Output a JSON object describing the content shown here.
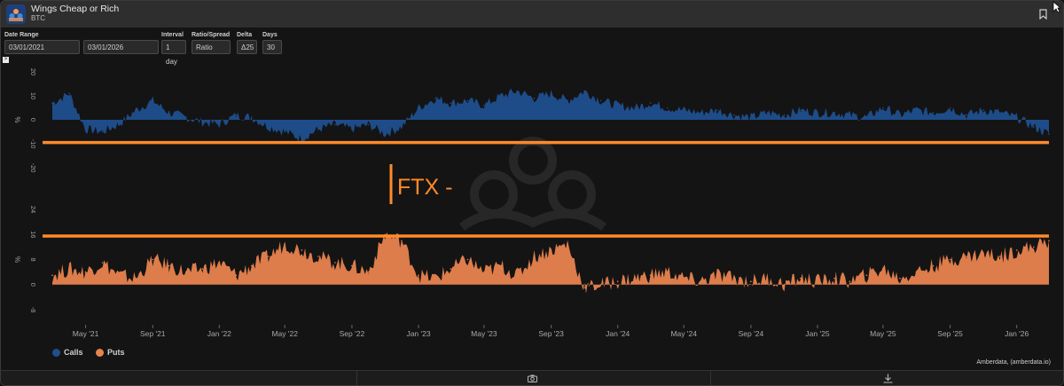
{
  "window": {
    "title": "Wings Cheap or Rich",
    "subtitle": "BTC",
    "logo_icon": "amberdata-logo-icon",
    "bookmark_icon": "bookmark-icon"
  },
  "controls": {
    "date_range_label": "Date Range",
    "start_date": "03/01/2021",
    "end_date": "03/01/2026",
    "interval_label": "Interval",
    "interval_value": "1 day",
    "ratio_label": "Ratio/Spread",
    "ratio_value": "Ratio",
    "delta_label": "Delta",
    "delta_value": "Δ25",
    "days_label": "Days",
    "days_value": "30",
    "toggle_symbol": ">"
  },
  "colors": {
    "calls": "#1f4f8f",
    "puts": "#e8834e",
    "annotation": "#ff8a2a",
    "background": "#141414"
  },
  "annotation_text": "FTX -",
  "chart_data": [
    {
      "type": "area",
      "ylabel": "%",
      "ylim": [
        -20,
        20
      ],
      "yticks": [
        "20",
        "10",
        "0",
        "-10",
        "-20"
      ],
      "series": [
        {
          "name": "Calls",
          "x": [
            "2021-03",
            "2021-04",
            "2021-05",
            "2021-06",
            "2021-07",
            "2021-08",
            "2021-09",
            "2021-10",
            "2021-11",
            "2021-12",
            "2022-01",
            "2022-02",
            "2022-03",
            "2022-04",
            "2022-05",
            "2022-06",
            "2022-07",
            "2022-08",
            "2022-09",
            "2022-10",
            "2022-11",
            "2022-12",
            "2023-01",
            "2023-02",
            "2023-03",
            "2023-04",
            "2023-05",
            "2023-06",
            "2023-07",
            "2023-08",
            "2023-09",
            "2023-10",
            "2023-11",
            "2023-12",
            "2024-01",
            "2024-02",
            "2024-03",
            "2024-04",
            "2024-05",
            "2024-06",
            "2024-07",
            "2024-08",
            "2024-09",
            "2024-10",
            "2024-11",
            "2024-12",
            "2025-01",
            "2025-02",
            "2025-03",
            "2025-04",
            "2025-05",
            "2025-06",
            "2025-07",
            "2025-08",
            "2025-09",
            "2025-10",
            "2025-11",
            "2025-12",
            "2026-01",
            "2026-02",
            "2026-03"
          ],
          "values": [
            7,
            11,
            -4,
            -5,
            -2,
            4,
            8,
            3,
            1,
            -1,
            -2,
            2,
            1,
            -3,
            -5,
            -8,
            -4,
            -2,
            -4,
            -2,
            -6,
            -3,
            5,
            9,
            7,
            8,
            6,
            10,
            12,
            9,
            11,
            8,
            12,
            8,
            6,
            5,
            7,
            5,
            4,
            3,
            4,
            2,
            1,
            3,
            2,
            4,
            3,
            3,
            2,
            1,
            5,
            2,
            4,
            3,
            5,
            2,
            4,
            3,
            1,
            -3,
            -6
          ]
        }
      ],
      "reference_line": -9.5
    },
    {
      "type": "area",
      "ylabel": "%",
      "ylim": [
        -8,
        24
      ],
      "yticks": [
        "24",
        "16",
        "8",
        "0",
        "-8"
      ],
      "series": [
        {
          "name": "Puts",
          "x": [
            "2021-03",
            "2021-04",
            "2021-05",
            "2021-06",
            "2021-07",
            "2021-08",
            "2021-09",
            "2021-10",
            "2021-11",
            "2021-12",
            "2022-01",
            "2022-02",
            "2022-03",
            "2022-04",
            "2022-05",
            "2022-06",
            "2022-07",
            "2022-08",
            "2022-09",
            "2022-10",
            "2022-11",
            "2022-12",
            "2023-01",
            "2023-02",
            "2023-03",
            "2023-04",
            "2023-05",
            "2023-06",
            "2023-07",
            "2023-08",
            "2023-09",
            "2023-10",
            "2023-11",
            "2023-12",
            "2024-01",
            "2024-02",
            "2024-03",
            "2024-04",
            "2024-05",
            "2024-06",
            "2024-07",
            "2024-08",
            "2024-09",
            "2024-10",
            "2024-11",
            "2024-12",
            "2025-01",
            "2025-02",
            "2025-03",
            "2025-04",
            "2025-05",
            "2025-06",
            "2025-07",
            "2025-08",
            "2025-09",
            "2025-10",
            "2025-11",
            "2025-12",
            "2026-01",
            "2026-02",
            "2026-03"
          ],
          "values": [
            3,
            5,
            4,
            7,
            3,
            2,
            8,
            6,
            4,
            5,
            7,
            3,
            6,
            9,
            13,
            11,
            9,
            7,
            6,
            4,
            16,
            14,
            3,
            2,
            5,
            8,
            4,
            6,
            3,
            9,
            11,
            13,
            -1,
            0,
            1,
            2,
            3,
            4,
            2,
            1,
            3,
            2,
            1,
            2,
            0,
            2,
            1,
            2,
            1,
            3,
            5,
            2,
            4,
            6,
            8,
            9,
            10,
            9,
            11,
            12,
            14
          ]
        }
      ],
      "reference_line": 15.5
    }
  ],
  "x_axis": {
    "ticks": [
      "May '21",
      "Sep '21",
      "Jan '22",
      "May '22",
      "Sep '22",
      "Jan '23",
      "May '23",
      "Sep '23",
      "Jan '24",
      "May '24",
      "Sep '24",
      "Jan '25",
      "May '25",
      "Sep '25",
      "Jan '26"
    ],
    "start": "2021-03-01",
    "end": "2026-03-01"
  },
  "legend": {
    "calls_label": "Calls",
    "puts_label": "Puts"
  },
  "credit": "Amberdata, (amberdata.io)",
  "footer": {
    "camera_icon": "camera-icon",
    "download_icon": "download-icon"
  }
}
